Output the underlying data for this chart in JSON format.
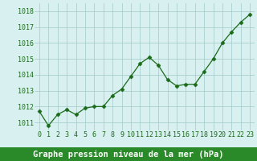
{
  "x": [
    0,
    1,
    2,
    3,
    4,
    5,
    6,
    7,
    8,
    9,
    10,
    11,
    12,
    13,
    14,
    15,
    16,
    17,
    18,
    19,
    20,
    21,
    22,
    23
  ],
  "y": [
    1011.7,
    1010.8,
    1011.5,
    1011.8,
    1011.5,
    1011.9,
    1012.0,
    1012.0,
    1012.7,
    1013.1,
    1013.9,
    1014.7,
    1015.1,
    1014.6,
    1013.7,
    1013.3,
    1013.4,
    1013.4,
    1014.2,
    1015.0,
    1016.0,
    1016.7,
    1017.3,
    1017.8
  ],
  "ylim": [
    1010.5,
    1018.5
  ],
  "yticks": [
    1011,
    1012,
    1013,
    1014,
    1015,
    1016,
    1017,
    1018
  ],
  "xticks": [
    0,
    1,
    2,
    3,
    4,
    5,
    6,
    7,
    8,
    9,
    10,
    11,
    12,
    13,
    14,
    15,
    16,
    17,
    18,
    19,
    20,
    21,
    22,
    23
  ],
  "line_color": "#1a6b1a",
  "marker": "D",
  "marker_size": 2.5,
  "bg_color": "#d8f0f0",
  "grid_color": "#a0c8c8",
  "xlabel": "Graphe pression niveau de la mer (hPa)",
  "xlabel_color": "#1a6b1a",
  "xlabel_fontsize": 7.5,
  "tick_color": "#1a6b1a",
  "tick_fontsize": 6.0,
  "bottom_bar_color": "#2a8a2a"
}
